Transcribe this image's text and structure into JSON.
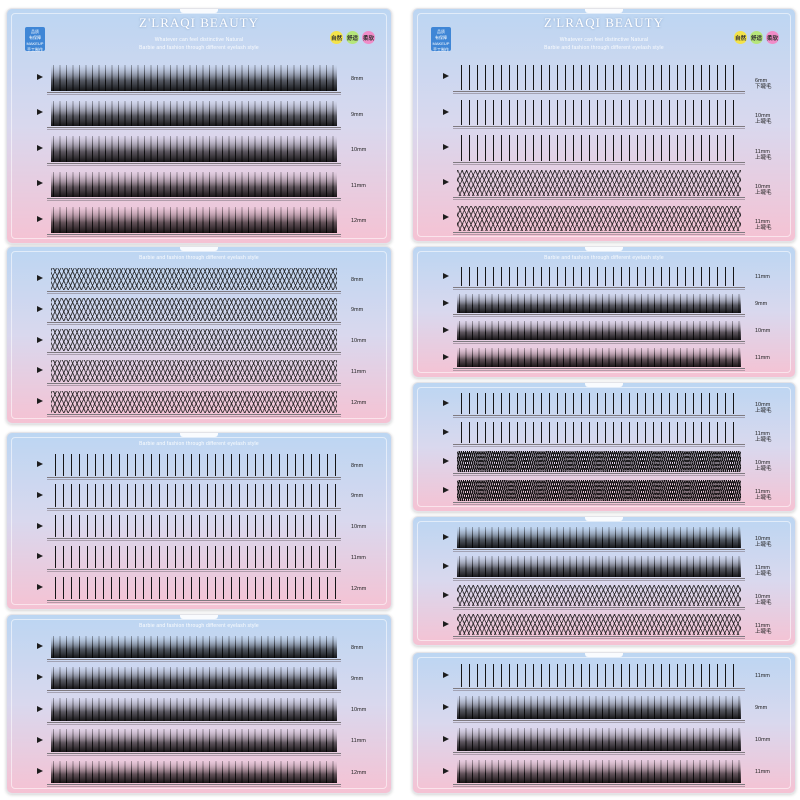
{
  "brand": "Z'LRAQI BEAUTY",
  "tagline_1": "Whatever can feel distinctive Natural",
  "tagline_2": "Barbie and fashion through different eyelash style",
  "badge_lines": [
    "品质",
    "有保障",
    "MAKEUP",
    "手工制作"
  ],
  "feature_labels": [
    {
      "text": "自然",
      "color": "#f4e34a"
    },
    {
      "text": "舒适",
      "color": "#b6e67a"
    },
    {
      "text": "柔软",
      "color": "#f08cc8"
    }
  ],
  "accent_colors": {
    "top": "#bcd6f2",
    "mid": "#d9d8ee",
    "bottom": "#f5c2d3",
    "lash": "#151515"
  },
  "trays": [
    {
      "name": "tray-left-1",
      "header": "full",
      "rows": [
        {
          "size": "8mm",
          "style": "tuft"
        },
        {
          "size": "9mm",
          "style": "tuft"
        },
        {
          "size": "10mm",
          "style": "tuft"
        },
        {
          "size": "11mm",
          "style": "tuft"
        },
        {
          "size": "12mm",
          "style": "tuft"
        }
      ]
    },
    {
      "name": "tray-left-2",
      "header": "tagline",
      "rows": [
        {
          "size": "8mm",
          "style": "fan"
        },
        {
          "size": "9mm",
          "style": "fan"
        },
        {
          "size": "10mm",
          "style": "fan"
        },
        {
          "size": "11mm",
          "style": "fan"
        },
        {
          "size": "12mm",
          "style": "fan"
        }
      ]
    },
    {
      "name": "tray-left-3",
      "header": "tagline",
      "rows": [
        {
          "size": "8mm",
          "style": "spike"
        },
        {
          "size": "9mm",
          "style": "spike"
        },
        {
          "size": "10mm",
          "style": "spike"
        },
        {
          "size": "11mm",
          "style": "spike"
        },
        {
          "size": "12mm",
          "style": "spike"
        }
      ]
    },
    {
      "name": "tray-left-4",
      "header": "tagline",
      "rows": [
        {
          "size": "8mm",
          "style": "tuft"
        },
        {
          "size": "9mm",
          "style": "tuft"
        },
        {
          "size": "10mm",
          "style": "tuft"
        },
        {
          "size": "11mm",
          "style": "tuft"
        },
        {
          "size": "12mm",
          "style": "tuft"
        }
      ]
    },
    {
      "name": "tray-right-1",
      "header": "full",
      "rows": [
        {
          "size": "6mm",
          "sub": "下睫毛",
          "style": "spike"
        },
        {
          "size": "10mm",
          "sub": "上睫毛",
          "style": "spike"
        },
        {
          "size": "11mm",
          "sub": "上睫毛",
          "style": "spike"
        },
        {
          "size": "10mm",
          "sub": "上睫毛",
          "style": "fan"
        },
        {
          "size": "11mm",
          "sub": "上睫毛",
          "style": "fan"
        }
      ]
    },
    {
      "name": "tray-right-2",
      "header": "tagline",
      "rows": [
        {
          "size": "11mm",
          "style": "spike"
        },
        {
          "size": "9mm",
          "style": "tuft"
        },
        {
          "size": "10mm",
          "style": "tuft"
        },
        {
          "size": "11mm",
          "style": "tuft"
        }
      ]
    },
    {
      "name": "tray-right-3",
      "header": "none",
      "rows": [
        {
          "size": "10mm",
          "sub": "上睫毛",
          "style": "spike"
        },
        {
          "size": "11mm",
          "sub": "上睫毛",
          "style": "spike"
        },
        {
          "size": "10mm",
          "sub": "上睫毛",
          "style": "dense"
        },
        {
          "size": "11mm",
          "sub": "上睫毛",
          "style": "dense"
        }
      ]
    },
    {
      "name": "tray-right-4",
      "header": "none",
      "rows": [
        {
          "size": "10mm",
          "sub": "上睫毛",
          "style": "tuft"
        },
        {
          "size": "11mm",
          "sub": "上睫毛",
          "style": "tuft"
        },
        {
          "size": "10mm",
          "sub": "上睫毛",
          "style": "fan"
        },
        {
          "size": "11mm",
          "sub": "上睫毛",
          "style": "fan"
        }
      ]
    },
    {
      "name": "tray-right-5",
      "header": "none",
      "rows": [
        {
          "size": "11mm",
          "style": "spike"
        },
        {
          "size": "9mm",
          "style": "tuft"
        },
        {
          "size": "10mm",
          "style": "tuft"
        },
        {
          "size": "11mm",
          "style": "tuft"
        }
      ]
    }
  ]
}
